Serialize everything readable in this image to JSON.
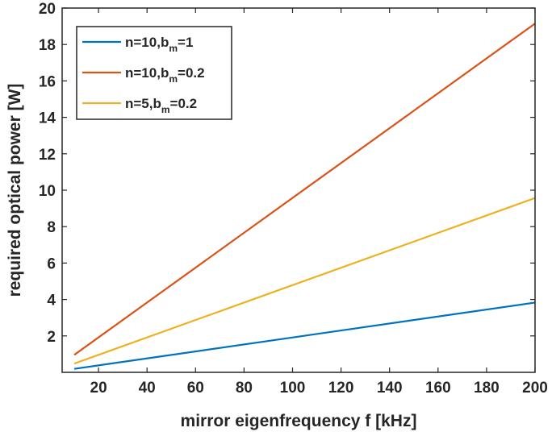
{
  "chart_data": {
    "type": "line",
    "xlabel": "mirror eigenfrequency f [kHz]",
    "ylabel": "required optical power [W]",
    "xlim": [
      5,
      200
    ],
    "ylim": [
      0,
      20
    ],
    "xticks": [
      20,
      40,
      60,
      80,
      100,
      120,
      140,
      160,
      180,
      200
    ],
    "yticks": [
      2,
      4,
      6,
      8,
      10,
      12,
      14,
      16,
      18,
      20
    ],
    "grid": false,
    "legend_position": "top-left",
    "series": [
      {
        "name": "n=10,b_m=1",
        "label_main": "n=10,b",
        "label_sub": "m",
        "label_tail": "=1",
        "color": "#0072BD",
        "x": [
          10,
          200
        ],
        "y": [
          0.19,
          3.83
        ]
      },
      {
        "name": "n=10,b_m=0.2",
        "label_main": "n=10,b",
        "label_sub": "m",
        "label_tail": "=0.2",
        "color": "#D95319",
        "x": [
          10,
          200
        ],
        "y": [
          0.96,
          19.15
        ]
      },
      {
        "name": "n=5,b_m=0.2",
        "label_main": "n=5,b",
        "label_sub": "m",
        "label_tail": "=0.2",
        "color": "#EDB120",
        "x": [
          10,
          200
        ],
        "y": [
          0.48,
          9.57
        ]
      }
    ]
  }
}
